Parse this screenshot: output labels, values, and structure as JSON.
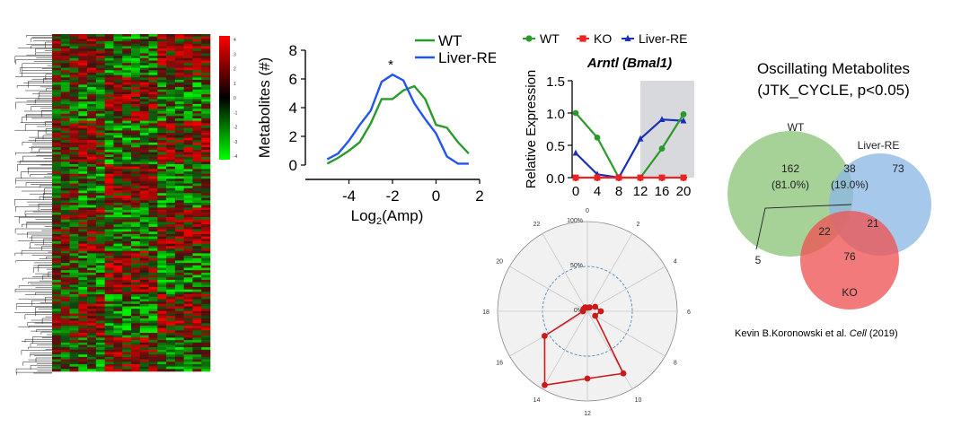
{
  "chart_data": [
    {
      "type": "heatmap",
      "colorbar": {
        "ticks": [
          "4",
          "3",
          "2",
          "1",
          "0",
          "-1",
          "-2",
          "-3",
          "-4"
        ],
        "colors": {
          "high": "#ff0000",
          "mid": "#000000",
          "low": "#00ff00"
        }
      }
    },
    {
      "type": "line",
      "xlabel_base": "Log",
      "xlabel_sub": "2",
      "xlabel_rest": "(Amp)",
      "ylabel": "Metabolites (#)",
      "xticks": [
        "-4",
        "-2",
        "0",
        "2"
      ],
      "yticks": [
        "0",
        "2",
        "4",
        "6",
        "8"
      ],
      "xlim": [
        -6,
        2
      ],
      "ylim": [
        0,
        8
      ],
      "annotation": "*",
      "annotation_x": -2,
      "series": [
        {
          "name": "WT",
          "color": "#2a9a2a",
          "x": [
            -5,
            -4.5,
            -4,
            -3.5,
            -3,
            -2.5,
            -2,
            -1.5,
            -1,
            -0.5,
            0,
            0.5,
            1,
            1.5
          ],
          "y": [
            0.1,
            0.5,
            1.0,
            1.6,
            2.9,
            4.6,
            4.6,
            5.2,
            5.5,
            4.6,
            2.8,
            2.6,
            1.6,
            0.8
          ]
        },
        {
          "name": "Liver-RE",
          "color": "#2255ee",
          "x": [
            -5,
            -4.5,
            -4,
            -3.5,
            -3,
            -2.5,
            -2,
            -1.5,
            -1,
            -0.5,
            0,
            0.5,
            1,
            1.5
          ],
          "y": [
            0.4,
            0.8,
            1.7,
            2.8,
            3.8,
            5.8,
            6.3,
            5.9,
            4.3,
            3.2,
            2.2,
            0.6,
            0.1,
            0.1
          ]
        }
      ]
    },
    {
      "type": "line",
      "title": "Arntl (Bmal1)",
      "ylabel": "Relative Expression",
      "xticks": [
        "0",
        "4",
        "8",
        "12",
        "16",
        "20"
      ],
      "yticks": [
        "0.0",
        "0.5",
        "1.0",
        "1.5"
      ],
      "xlim": [
        0,
        20
      ],
      "ylim": [
        0,
        1.5
      ],
      "shaded_region": [
        12,
        22
      ],
      "series": [
        {
          "name": "WT",
          "color": "#2a9a2a",
          "marker": "circle",
          "x": [
            0,
            4,
            8,
            12,
            16,
            20
          ],
          "y": [
            1.0,
            0.62,
            0.0,
            0.0,
            0.45,
            0.98
          ]
        },
        {
          "name": "KO",
          "color": "#ee2222",
          "marker": "square",
          "x": [
            0,
            4,
            8,
            12,
            16,
            20
          ],
          "y": [
            0,
            0,
            0,
            0,
            0,
            0
          ]
        },
        {
          "name": "Liver-RE",
          "color": "#1a2fb8",
          "marker": "triangle",
          "x": [
            0,
            4,
            8,
            12,
            16,
            20
          ],
          "y": [
            0.38,
            0.05,
            0.0,
            0.6,
            0.9,
            0.88
          ]
        }
      ]
    },
    {
      "type": "radar",
      "hour_labels": [
        "0",
        "2",
        "4",
        "6",
        "8",
        "10",
        "12",
        "14",
        "16",
        "18",
        "20",
        "22"
      ],
      "radial_labels": [
        "0%",
        "50%",
        "100%"
      ],
      "values_pct": [
        0,
        5,
        10,
        15,
        10,
        80,
        75,
        95,
        55,
        5,
        5,
        5
      ],
      "color": "#cc1a1a"
    },
    {
      "type": "venn",
      "title_line1": "Oscillating Metabolites",
      "title_line2": "(JTK_CYCLE, p<0.05)",
      "sets": [
        {
          "name": "WT",
          "color": "#8dc47a"
        },
        {
          "name": "Liver-RE",
          "color": "#8db8e4"
        },
        {
          "name": "KO",
          "color": "#ee5555"
        }
      ],
      "regions": {
        "wt_only": "162",
        "wt_only_pct": "(81.0%)",
        "wt_liver": "38",
        "wt_liver_pct": "(19.0%)",
        "liver_only": "73",
        "wt_ko": "22",
        "liver_ko": "21",
        "ko_only": "76",
        "all_three": "5"
      }
    }
  ],
  "citation": {
    "authors": "Kevin B.Koronowski et al.",
    "journal": "Cell",
    "year": "(2019)"
  }
}
